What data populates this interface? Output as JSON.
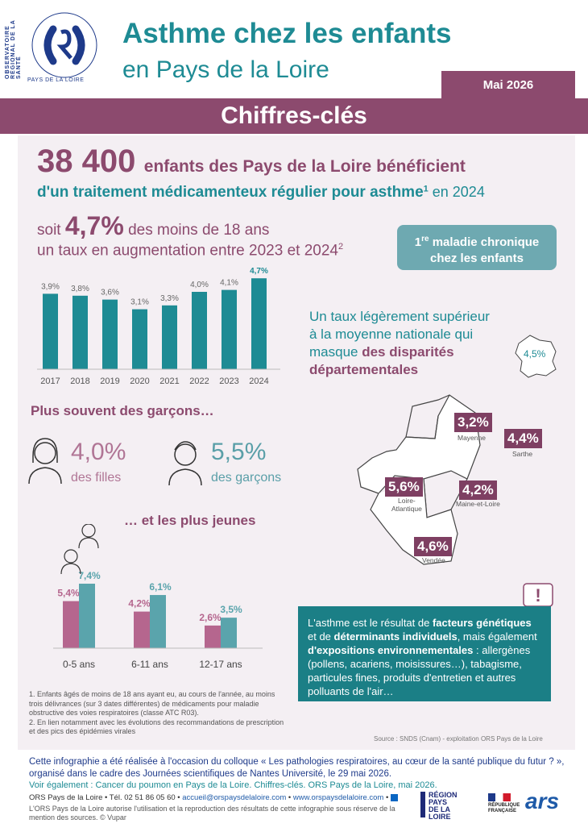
{
  "header": {
    "logo_text_top": "OBSERVATOIRE RÉGIONAL DE LA SANTÉ",
    "logo_text_bottom": "PAYS DE LA LOIRE",
    "title_line1": "Asthme chez les enfants",
    "title_line2": "en Pays de la Loire",
    "date": "Mai 2026",
    "banner": "Chiffres-clés"
  },
  "headline": {
    "number": "38 400",
    "text1": "enfants des Pays de la Loire bénéficient",
    "text2": "d'un traitement médicamenteux régulier pour asthme",
    "sup": "1",
    "text3": " en 2024",
    "soit": "soit ",
    "pct": "4,7%",
    "pct_text": " des moins de 18 ans",
    "line3": "un taux en augmentation entre 2023 et 2024",
    "line3_sup": "2"
  },
  "pill": {
    "sup": "re",
    "pre": "1",
    "line1": " maladie chronique",
    "line2": "chez les enfants"
  },
  "chart_data": [
    {
      "type": "bar",
      "categories": [
        "2017",
        "2018",
        "2019",
        "2020",
        "2021",
        "2022",
        "2023",
        "2024"
      ],
      "values": [
        3.9,
        3.8,
        3.6,
        3.1,
        3.3,
        4.0,
        4.1,
        4.7
      ],
      "labels": [
        "3,9%",
        "3,8%",
        "3,6%",
        "3,1%",
        "3,3%",
        "4,0%",
        "4,1%",
        "4,7%"
      ],
      "ylim": [
        0,
        5
      ]
    },
    {
      "type": "bar",
      "categories": [
        "0-5 ans",
        "6-11 ans",
        "12-17 ans"
      ],
      "series": [
        {
          "values": [
            5.4,
            4.2,
            2.6
          ],
          "labels": [
            "5,4%",
            "4,2%",
            "2,6%"
          ]
        },
        {
          "values": [
            7.4,
            6.1,
            3.5
          ],
          "labels": [
            "7,4%",
            "6,1%",
            "3,5%"
          ]
        }
      ],
      "ylim": [
        0,
        8
      ]
    }
  ],
  "national": {
    "line1": "Un taux légèrement supérieur",
    "line2": "à la moyenne nationale qui",
    "line3a": "masque ",
    "line3b": "des disparités",
    "line4": "départementales",
    "france_value": "4,5%"
  },
  "gender": {
    "heading": "Plus souvent des garçons…",
    "girls_value": "4,0%",
    "girls_label": "des filles",
    "boys_value": "5,5%",
    "boys_label": "des garçons"
  },
  "young_heading": "… et les plus jeunes",
  "map": [
    {
      "name": "Mayenne",
      "value": "3,2%"
    },
    {
      "name": "Sarthe",
      "value": "4,4%"
    },
    {
      "name": "Loire-Atlantique",
      "name1": "Loire-",
      "name2": "Atlantique",
      "value": "5,6%"
    },
    {
      "name": "Maine-et-Loire",
      "value": "4,2%"
    },
    {
      "name": "Vendée",
      "value": "4,6%"
    }
  ],
  "infobox": {
    "t1": "L'asthme est le résultat de ",
    "b1": "facteurs génétiques",
    "t2": " et de ",
    "b2": "déterminants individuels",
    "t3": ", mais également ",
    "b3": "d'expositions environnementales",
    "t4": " : allergènes (pollens, acariens, moisissures…), tabagisme, particules fines, produits d'entretien et autres polluants de l'air…"
  },
  "notes": {
    "n1": "1. Enfants âgés de moins de 18 ans ayant eu, au cours de l'année, au moins trois délivrances (sur 3 dates différentes) de médicaments pour maladie obstructive des voies respiratoires (classe ATC R03).",
    "n2": "2. En lien notamment avec les évolutions des recommandations de prescription et des pics des épidémies virales",
    "source": "Source : SNDS (Cnam) - exploitation ORS Pays de la Loire"
  },
  "footer": {
    "line1": "Cette infographie a été réalisée à l'occasion du colloque « Les pathologies respiratoires, au cœur de la santé publique du futur ? »,",
    "line2": "organisé dans le cadre des Journées scientifiques de Nantes Université, le 29 mai 2026.",
    "line3": "Voir également : Cancer du poumon en Pays de la Loire. Chiffres-clés. ORS Pays de la Loire, mai 2026.",
    "contact_pre": "ORS Pays de la Loire • Tél. 02 51 86 05 60 • ",
    "email": "accueil@orspaysdelaloire.com",
    "sep": " • ",
    "site": "www.orspaysdelaloire.com",
    "sep2": " • ",
    "rights": "L'ORS Pays de la Loire autorise l'utilisation et la reproduction des résultats de cette infographie sous réserve de la mention des sources. © Vupar",
    "logo_region1": "RÉGION",
    "logo_region2": "PAYS",
    "logo_region3": "DE LA",
    "logo_region4": "LOIRE",
    "logo_rf1": "RÉPUBLIQUE",
    "logo_rf2": "FRANÇAISE",
    "logo_ars": "ars"
  }
}
